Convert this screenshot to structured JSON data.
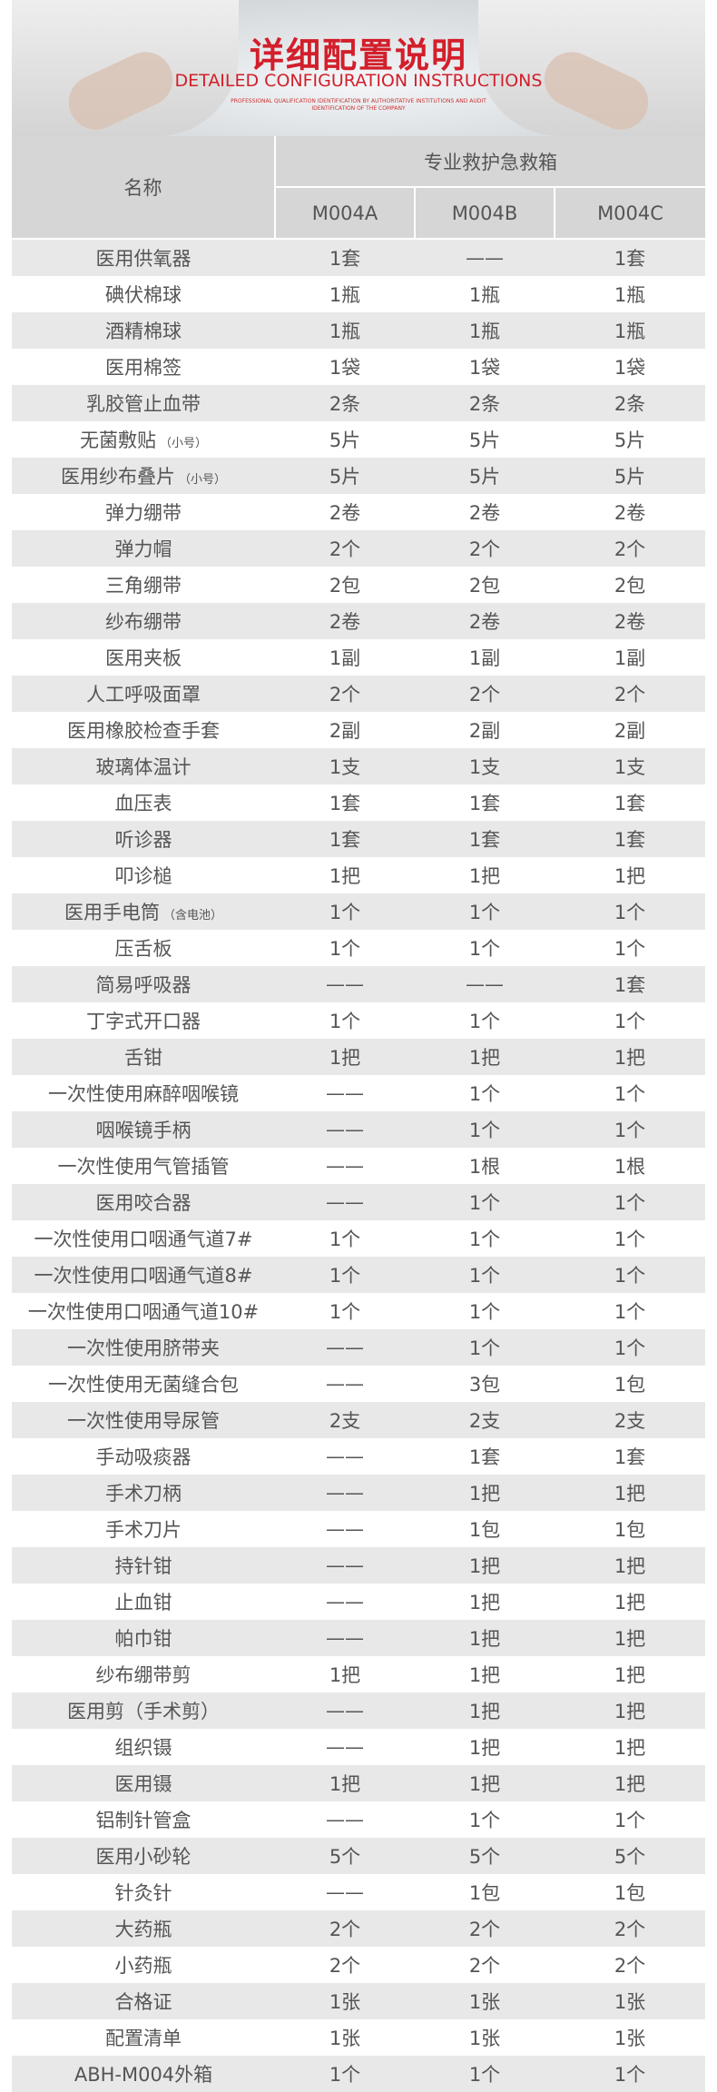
{
  "banner": {
    "title": "详细配置说明",
    "subtitle": "DETAILED CONFIGURATION INSTRUCTIONS",
    "tagline1": "PROFESSIONAL QUALIFICATION IDENTIFICATION BY AUTHORITATIVE INSTITUTIONS AND AUDIT",
    "tagline2": "IDENTIFICATION OF THE COMPANY"
  },
  "table": {
    "name_header": "名称",
    "group_header": "专业救护急救箱",
    "models": [
      "M004A",
      "M004B",
      "M004C"
    ],
    "rows": [
      {
        "name": "医用供氧器",
        "note": "",
        "a": "1套",
        "b": "——",
        "c": "1套"
      },
      {
        "name": "碘伏棉球",
        "note": "",
        "a": "1瓶",
        "b": "1瓶",
        "c": "1瓶"
      },
      {
        "name": "酒精棉球",
        "note": "",
        "a": "1瓶",
        "b": "1瓶",
        "c": "1瓶"
      },
      {
        "name": "医用棉签",
        "note": "",
        "a": "1袋",
        "b": "1袋",
        "c": "1袋"
      },
      {
        "name": "乳胶管止血带",
        "note": "",
        "a": "2条",
        "b": "2条",
        "c": "2条"
      },
      {
        "name": "无菌敷贴",
        "note": "（小号）",
        "a": "5片",
        "b": "5片",
        "c": "5片"
      },
      {
        "name": "医用纱布叠片",
        "note": "（小号）",
        "a": "5片",
        "b": "5片",
        "c": "5片"
      },
      {
        "name": "弹力绷带",
        "note": "",
        "a": "2卷",
        "b": "2卷",
        "c": "2卷"
      },
      {
        "name": "弹力帽",
        "note": "",
        "a": "2个",
        "b": "2个",
        "c": "2个"
      },
      {
        "name": "三角绷带",
        "note": "",
        "a": "2包",
        "b": "2包",
        "c": "2包"
      },
      {
        "name": "纱布绷带",
        "note": "",
        "a": "2卷",
        "b": "2卷",
        "c": "2卷"
      },
      {
        "name": "医用夹板",
        "note": "",
        "a": "1副",
        "b": "1副",
        "c": "1副"
      },
      {
        "name": "人工呼吸面罩",
        "note": "",
        "a": "2个",
        "b": "2个",
        "c": "2个"
      },
      {
        "name": "医用橡胶检查手套",
        "note": "",
        "a": "2副",
        "b": "2副",
        "c": "2副"
      },
      {
        "name": "玻璃体温计",
        "note": "",
        "a": "1支",
        "b": "1支",
        "c": "1支"
      },
      {
        "name": "血压表",
        "note": "",
        "a": "1套",
        "b": "1套",
        "c": "1套"
      },
      {
        "name": "听诊器",
        "note": "",
        "a": "1套",
        "b": "1套",
        "c": "1套"
      },
      {
        "name": "叩诊槌",
        "note": "",
        "a": "1把",
        "b": "1把",
        "c": "1把"
      },
      {
        "name": "医用手电筒",
        "note": "（含电池）",
        "a": "1个",
        "b": "1个",
        "c": "1个"
      },
      {
        "name": "压舌板",
        "note": "",
        "a": "1个",
        "b": "1个",
        "c": "1个"
      },
      {
        "name": "简易呼吸器",
        "note": "",
        "a": "——",
        "b": "——",
        "c": "1套"
      },
      {
        "name": "丁字式开口器",
        "note": "",
        "a": "1个",
        "b": "1个",
        "c": "1个"
      },
      {
        "name": "舌钳",
        "note": "",
        "a": "1把",
        "b": "1把",
        "c": "1把"
      },
      {
        "name": "一次性使用麻醉咽喉镜",
        "note": "",
        "a": "——",
        "b": "1个",
        "c": "1个"
      },
      {
        "name": "咽喉镜手柄",
        "note": "",
        "a": "——",
        "b": "1个",
        "c": "1个"
      },
      {
        "name": "一次性使用气管插管",
        "note": "",
        "a": "——",
        "b": "1根",
        "c": "1根"
      },
      {
        "name": "医用咬合器",
        "note": "",
        "a": "——",
        "b": "1个",
        "c": "1个"
      },
      {
        "name": "一次性使用口咽通气道7#",
        "note": "",
        "a": "1个",
        "b": "1个",
        "c": "1个"
      },
      {
        "name": "一次性使用口咽通气道8#",
        "note": "",
        "a": "1个",
        "b": "1个",
        "c": "1个"
      },
      {
        "name": "一次性使用口咽通气道10#",
        "note": "",
        "a": "1个",
        "b": "1个",
        "c": "1个"
      },
      {
        "name": "一次性使用脐带夹",
        "note": "",
        "a": "——",
        "b": "1个",
        "c": "1个"
      },
      {
        "name": "一次性使用无菌缝合包",
        "note": "",
        "a": "——",
        "b": "3包",
        "c": "1包"
      },
      {
        "name": "一次性使用导尿管",
        "note": "",
        "a": "2支",
        "b": "2支",
        "c": "2支"
      },
      {
        "name": "手动吸痰器",
        "note": "",
        "a": "——",
        "b": "1套",
        "c": "1套"
      },
      {
        "name": "手术刀柄",
        "note": "",
        "a": "——",
        "b": "1把",
        "c": "1把"
      },
      {
        "name": "手术刀片",
        "note": "",
        "a": "——",
        "b": "1包",
        "c": "1包"
      },
      {
        "name": "持针钳",
        "note": "",
        "a": "——",
        "b": "1把",
        "c": "1把"
      },
      {
        "name": "止血钳",
        "note": "",
        "a": "——",
        "b": "1把",
        "c": "1把"
      },
      {
        "name": "帕巾钳",
        "note": "",
        "a": "——",
        "b": "1把",
        "c": "1把"
      },
      {
        "name": "纱布绷带剪",
        "note": "",
        "a": "1把",
        "b": "1把",
        "c": "1把"
      },
      {
        "name": "医用剪（手术剪）",
        "note": "",
        "a": "——",
        "b": "1把",
        "c": "1把"
      },
      {
        "name": "组织镊",
        "note": "",
        "a": "——",
        "b": "1把",
        "c": "1把"
      },
      {
        "name": "医用镊",
        "note": "",
        "a": "1把",
        "b": "1把",
        "c": "1把"
      },
      {
        "name": "铝制针管盒",
        "note": "",
        "a": "——",
        "b": "1个",
        "c": "1个"
      },
      {
        "name": "医用小砂轮",
        "note": "",
        "a": "5个",
        "b": "5个",
        "c": "5个"
      },
      {
        "name": "针灸针",
        "note": "",
        "a": "——",
        "b": "1包",
        "c": "1包"
      },
      {
        "name": "大药瓶",
        "note": "",
        "a": "2个",
        "b": "2个",
        "c": "2个"
      },
      {
        "name": "小药瓶",
        "note": "",
        "a": "2个",
        "b": "2个",
        "c": "2个"
      },
      {
        "name": "合格证",
        "note": "",
        "a": "1张",
        "b": "1张",
        "c": "1张"
      },
      {
        "name": "配置清单",
        "note": "",
        "a": "1张",
        "b": "1张",
        "c": "1张"
      },
      {
        "name": "ABH-M004外箱",
        "note": "",
        "a": "1个",
        "b": "1个",
        "c": "1个"
      }
    ]
  },
  "colors": {
    "accent": "#d21f2b",
    "header_bg": "#d6d6d6",
    "stripe_bg": "#e8e8e8",
    "text": "#555555"
  }
}
